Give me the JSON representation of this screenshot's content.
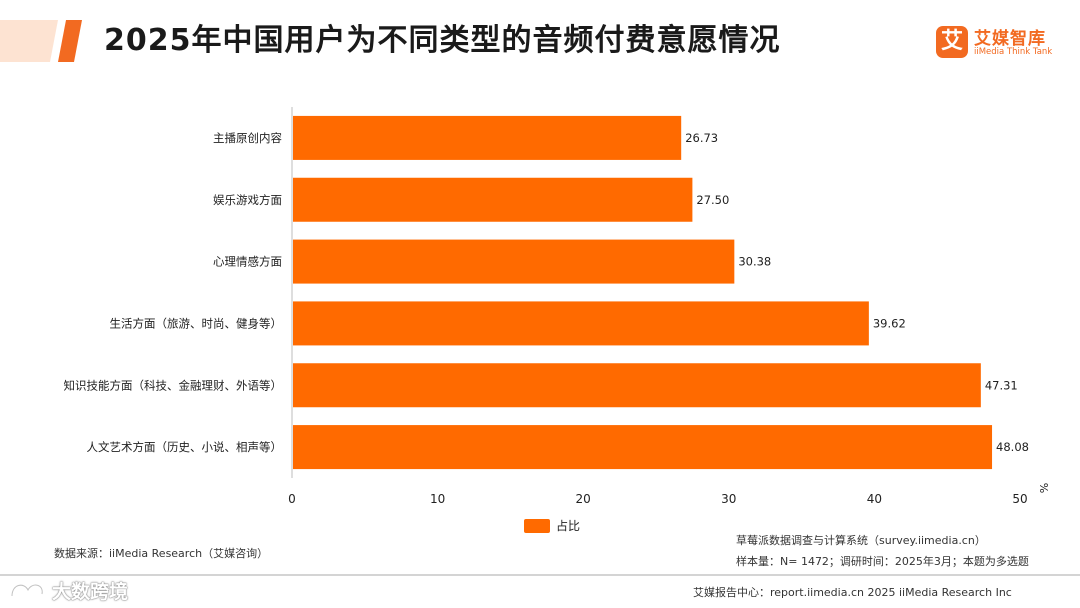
{
  "title": "2025年中国用户为不同类型的音频付费意愿情况",
  "brand": {
    "mark": "艾",
    "name_cn": "艾媒智库",
    "name_en": "iiMedia Think Tank",
    "accent": "#f26a21"
  },
  "chart_data": {
    "type": "bar",
    "orientation": "horizontal",
    "categories": [
      "主播原创内容",
      "娱乐游戏方面",
      "心理情感方面",
      "生活方面（旅游、时尚、健身等）",
      "知识技能方面（科技、金融理财、外语等）",
      "人文艺术方面（历史、小说、相声等）"
    ],
    "series": [
      {
        "name": "占比",
        "values": [
          26.73,
          27.5,
          30.38,
          39.62,
          47.31,
          48.08
        ],
        "color": "#ff6a00"
      }
    ],
    "value_labels": [
      "26.73",
      "27.50",
      "30.38",
      "39.62",
      "47.31",
      "48.08"
    ],
    "xlim": [
      0,
      50
    ],
    "xticks": [
      "0",
      "10",
      "20",
      "30",
      "40",
      "50"
    ],
    "xunit": "%",
    "grid": false,
    "legend": "bottom-center"
  },
  "source": "数据来源：iiMedia Research（艾媒咨询）",
  "survey_system": "草莓派数据调查与计算系统（survey.iimedia.cn）",
  "sample": "样本量：N= 1472；调研时间：2025年3月；本题为多选题",
  "footer": "艾媒报告中心：report.iimedia.cn   2025 iiMedia Research Inc",
  "watermark": "大数跨境"
}
